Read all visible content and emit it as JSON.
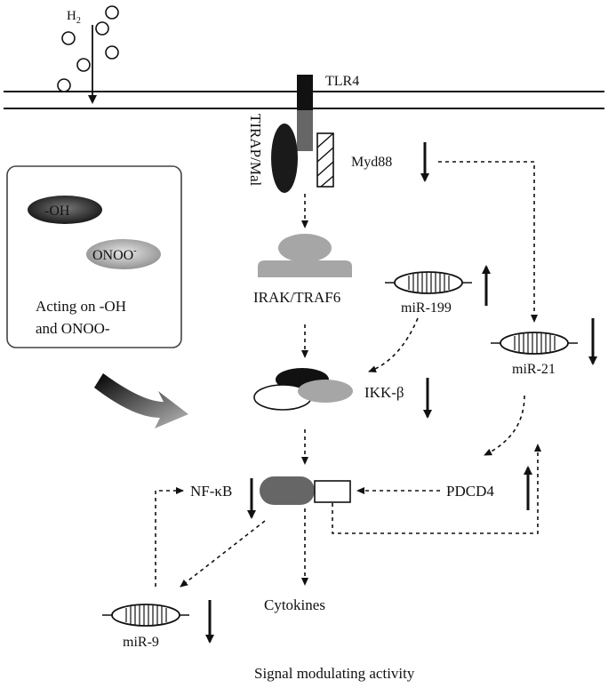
{
  "labels": {
    "h2": "H",
    "h2_sub": "2",
    "tlr4": "TLR4",
    "tirap": "TIRAP/Mal",
    "myd88": "Myd88",
    "oh": "-OH",
    "onoo": "ONOO",
    "onoo_sup": "-",
    "acting_line1": "Acting on -OH",
    "acting_line2": "and ONOO-",
    "irak": "IRAK/TRAF6",
    "mir199": "miR-199",
    "mir21": "miR-21",
    "ikk": "IKK-β",
    "nfkb": "NF-κB",
    "pdcd4": "PDCD4",
    "mir9": "miR-9",
    "cytokines": "Cytokines",
    "caption": "Signal modulating activity"
  },
  "colors": {
    "dark": "#111111",
    "grey": "#8a8a8a",
    "light_grey": "#a6a6a6",
    "box_border": "#444444"
  },
  "regulation": {
    "myd88": "down",
    "mir199": "up",
    "mir21": "down",
    "ikk": "down",
    "nfkb": "down",
    "pdcd4": "up",
    "mir9": "down"
  }
}
